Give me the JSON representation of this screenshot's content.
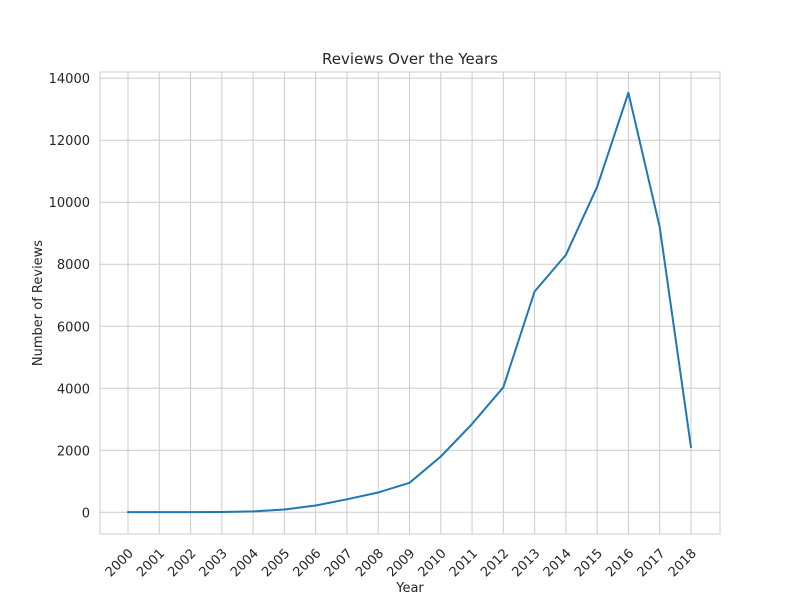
{
  "chart_data": {
    "type": "line",
    "title": "Reviews Over the Years",
    "xlabel": "Year",
    "ylabel": "Number of Reviews",
    "x": [
      "2000",
      "2001",
      "2002",
      "2003",
      "2004",
      "2005",
      "2006",
      "2007",
      "2008",
      "2009",
      "2010",
      "2011",
      "2012",
      "2013",
      "2014",
      "2015",
      "2016",
      "2017",
      "2018"
    ],
    "series": [
      {
        "values": [
          5,
          5,
          5,
          10,
          30,
          90,
          220,
          420,
          640,
          950,
          1800,
          2850,
          4030,
          7120,
          8300,
          10500,
          13530,
          9200,
          2100
        ]
      }
    ],
    "yticks": [
      0,
      2000,
      4000,
      6000,
      8000,
      10000,
      12000,
      14000
    ],
    "ylim": [
      -700,
      14200
    ],
    "grid": true,
    "line_color": "#1f77b4",
    "grid_color": "#cccccc"
  }
}
